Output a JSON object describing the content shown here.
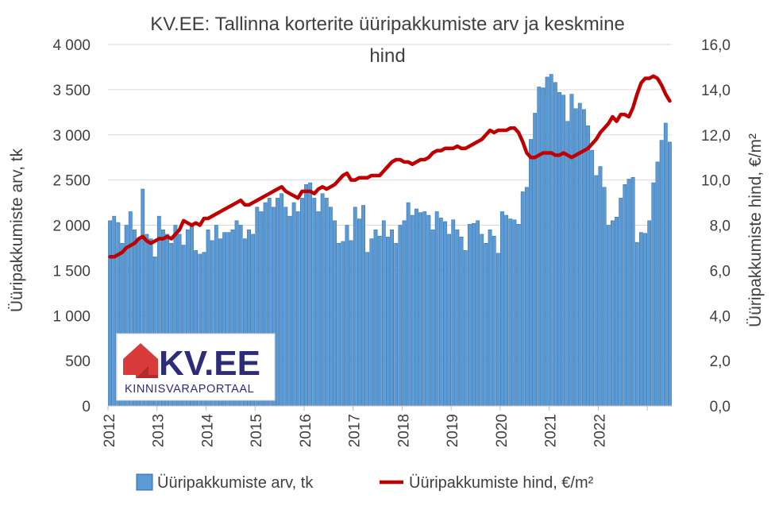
{
  "chart_data": {
    "type": "bar+line",
    "title_line1": "KV.EE: Tallinna korterite üüripakkumiste arv ja keskmine",
    "title_line2": "hind",
    "ylabel_left": "Üüripakkumiste arv, tk",
    "ylabel_right": "Üüripakkumiste hind, €/m²",
    "ylim_left": [
      0,
      4000
    ],
    "ylim_right": [
      0,
      16
    ],
    "yticks_left": [
      "0",
      "500",
      "1 000",
      "1 500",
      "2 000",
      "2 500",
      "3 000",
      "3 500",
      "4 000"
    ],
    "yticks_right": [
      "0,0",
      "2,0",
      "4,0",
      "6,0",
      "8,0",
      "10,0",
      "12,0",
      "14,0",
      "16,0"
    ],
    "year_labels": [
      "2012",
      "2013",
      "2014",
      "2015",
      "2016",
      "2017",
      "2018",
      "2019",
      "2020",
      "2021",
      "2022"
    ],
    "start": "2012-01",
    "colors": {
      "bar": "#5b9bd5",
      "bar_edge": "#2e6aa8",
      "line": "#c00000"
    },
    "series": [
      {
        "name": "Üüripakkumiste arv, tk",
        "kind": "bar",
        "values": [
          2050,
          2100,
          2030,
          1800,
          2000,
          2150,
          1950,
          1850,
          2400,
          1900,
          1850,
          1650,
          2100,
          1950,
          1900,
          1800,
          2000,
          1900,
          1780,
          1950,
          2000,
          1720,
          1680,
          1700,
          1950,
          1830,
          2000,
          1850,
          1920,
          1920,
          1950,
          2050,
          2000,
          1850,
          1950,
          1900,
          2200,
          2150,
          2250,
          2300,
          2200,
          2300,
          2350,
          2200,
          2100,
          2250,
          2150,
          2300,
          2450,
          2470,
          2300,
          2150,
          2350,
          2300,
          2200,
          2050,
          1800,
          1820,
          2000,
          1830,
          2200,
          2070,
          2220,
          1700,
          1850,
          1950,
          1880,
          2050,
          1870,
          1950,
          1800,
          2000,
          2050,
          2250,
          2110,
          2180,
          2140,
          2150,
          2110,
          1950,
          2150,
          2080,
          2040,
          1900,
          2060,
          1950,
          1870,
          1720,
          2010,
          2020,
          2050,
          1900,
          1800,
          1950,
          1880,
          1690,
          2150,
          2110,
          2070,
          2060,
          2010,
          2370,
          2420,
          2950,
          3240,
          3530,
          3520,
          3640,
          3670,
          3580,
          3470,
          3440,
          3150,
          3450,
          3290,
          3350,
          3280,
          3100,
          2830,
          2550,
          2650,
          2420,
          2000,
          2050,
          2090,
          2300,
          2450,
          2510,
          2530,
          1810,
          1920,
          1910,
          2050,
          2470,
          2700,
          2940,
          3130,
          2920
        ]
      },
      {
        "name": "Üüripakkumiste hind, €/m²",
        "kind": "line",
        "axis": "right",
        "values": [
          6.6,
          6.6,
          6.7,
          6.8,
          7.0,
          7.1,
          7.2,
          7.4,
          7.5,
          7.3,
          7.2,
          7.3,
          7.4,
          7.4,
          7.5,
          7.4,
          7.6,
          7.8,
          8.2,
          8.1,
          8.0,
          8.1,
          8.0,
          8.3,
          8.3,
          8.4,
          8.5,
          8.6,
          8.7,
          8.8,
          8.9,
          9.0,
          9.1,
          8.9,
          8.9,
          9.0,
          9.1,
          9.2,
          9.3,
          9.4,
          9.5,
          9.6,
          9.7,
          9.5,
          9.4,
          9.3,
          9.2,
          9.5,
          9.5,
          9.5,
          9.4,
          9.6,
          9.7,
          9.6,
          9.7,
          9.8,
          10.0,
          10.2,
          10.3,
          10.0,
          10.0,
          10.1,
          10.1,
          10.1,
          10.2,
          10.2,
          10.2,
          10.4,
          10.6,
          10.8,
          10.9,
          10.9,
          10.8,
          10.8,
          10.7,
          10.8,
          10.9,
          10.9,
          11.0,
          11.2,
          11.3,
          11.3,
          11.4,
          11.4,
          11.4,
          11.5,
          11.4,
          11.4,
          11.5,
          11.6,
          11.7,
          11.8,
          12.0,
          12.2,
          12.1,
          12.2,
          12.2,
          12.2,
          12.3,
          12.3,
          12.1,
          11.7,
          11.2,
          11.0,
          11.0,
          11.1,
          11.2,
          11.2,
          11.2,
          11.1,
          11.1,
          11.2,
          11.1,
          11.0,
          11.1,
          11.2,
          11.3,
          11.4,
          11.6,
          11.8,
          12.1,
          12.3,
          12.5,
          12.8,
          12.6,
          12.9,
          12.9,
          12.8,
          13.2,
          13.8,
          14.3,
          14.5,
          14.5,
          14.6,
          14.5,
          14.2,
          13.8,
          13.5
        ]
      }
    ],
    "legend_position": "bottom",
    "legend": [
      "Üüripakkumiste arv, tk",
      "Üüripakkumiste hind, €/m²"
    ]
  },
  "logo": {
    "name": "KV.EE",
    "tagline": "KINNISVARAPORTAAL"
  }
}
